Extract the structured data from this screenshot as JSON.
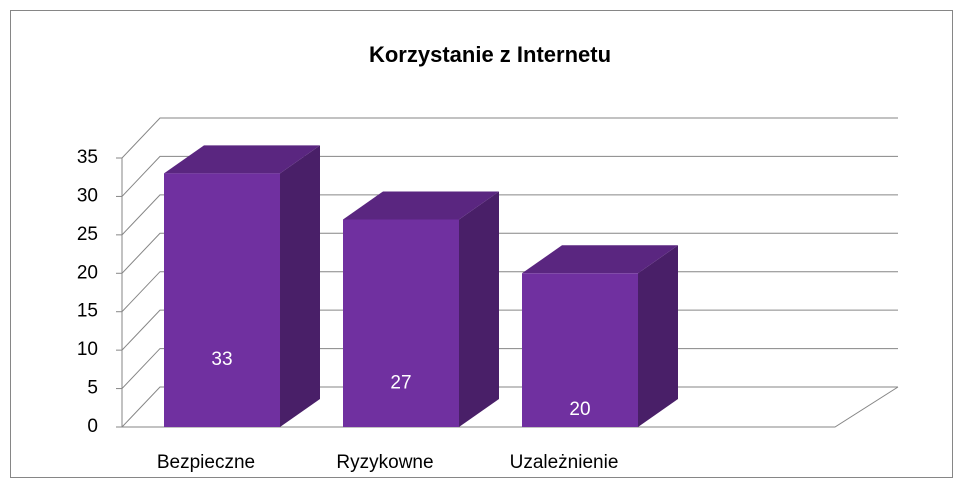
{
  "chart_data": {
    "type": "bar3d",
    "title": "Korzystanie z Internetu",
    "categories": [
      "Bezpieczne",
      "Ryzykowne",
      "Uzależnienie"
    ],
    "values": [
      33,
      27,
      20
    ],
    "color": "#7030a0",
    "ylim": [
      0,
      35
    ],
    "yticks": [
      0,
      5,
      10,
      15,
      20,
      25,
      30,
      35
    ],
    "grid": true
  }
}
